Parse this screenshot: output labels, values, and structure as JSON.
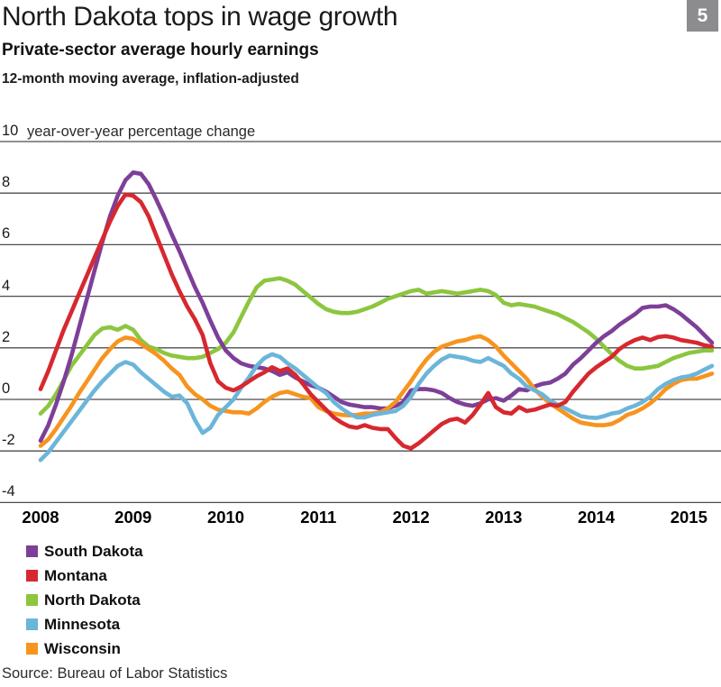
{
  "header": {
    "title": "North Dakota tops in wage growth",
    "badge": "5",
    "subtitle": "Private-sector average hourly earnings",
    "note": "12-month moving average, inflation-adjusted"
  },
  "source": "Source: Bureau of Labor Statistics",
  "chart_data": {
    "type": "line",
    "title": "North Dakota tops in wage growth",
    "subtitle": "Private-sector average hourly earnings",
    "note": "12-month moving average, inflation-adjusted",
    "grid": true,
    "legend_position": "bottom-left",
    "y_axis": {
      "annotation": "year-over-year percentage change",
      "ylim": [
        -4,
        10
      ],
      "ticks": [
        10,
        8,
        6,
        4,
        2,
        0,
        -2,
        -4
      ]
    },
    "x_axis": {
      "start": "2008-01",
      "end": "2015-04",
      "frequency": "monthly",
      "ticks": [
        "2008",
        "2009",
        "2010",
        "2011",
        "2012",
        "2013",
        "2014",
        "2015"
      ]
    },
    "series": [
      {
        "name": "South Dakota",
        "color": "#7d3f98",
        "values": [
          -1.6,
          -1.0,
          -0.2,
          0.7,
          1.7,
          2.8,
          3.9,
          5.0,
          6.1,
          7.1,
          7.9,
          8.5,
          8.8,
          8.75,
          8.35,
          7.75,
          7.1,
          6.4,
          5.75,
          5.05,
          4.35,
          3.75,
          3.05,
          2.4,
          1.9,
          1.6,
          1.4,
          1.3,
          1.25,
          1.2,
          1.1,
          0.95,
          1.05,
          0.85,
          0.7,
          0.55,
          0.45,
          0.3,
          0.1,
          -0.1,
          -0.2,
          -0.25,
          -0.3,
          -0.3,
          -0.35,
          -0.35,
          -0.25,
          -0.1,
          0.35,
          0.4,
          0.4,
          0.35,
          0.25,
          0.05,
          -0.1,
          -0.2,
          -0.25,
          -0.15,
          0.0,
          0.05,
          -0.05,
          0.15,
          0.4,
          0.35,
          0.5,
          0.6,
          0.65,
          0.8,
          1.0,
          1.35,
          1.6,
          1.9,
          2.2,
          2.45,
          2.65,
          2.9,
          3.1,
          3.3,
          3.55,
          3.6,
          3.6,
          3.65,
          3.5,
          3.3,
          3.05,
          2.8,
          2.5,
          2.2
        ]
      },
      {
        "name": "Montana",
        "color": "#d7282f",
        "values": [
          0.4,
          1.1,
          1.9,
          2.7,
          3.4,
          4.1,
          4.8,
          5.5,
          6.2,
          6.9,
          7.5,
          7.95,
          7.9,
          7.65,
          7.1,
          6.35,
          5.6,
          4.85,
          4.2,
          3.6,
          3.1,
          2.5,
          1.4,
          0.7,
          0.45,
          0.35,
          0.5,
          0.7,
          0.9,
          1.05,
          1.25,
          1.1,
          1.2,
          0.95,
          0.6,
          0.2,
          -0.1,
          -0.4,
          -0.7,
          -0.9,
          -1.05,
          -1.1,
          -1.0,
          -1.1,
          -1.15,
          -1.15,
          -1.5,
          -1.8,
          -1.9,
          -1.7,
          -1.45,
          -1.2,
          -0.95,
          -0.8,
          -0.75,
          -0.9,
          -0.6,
          -0.2,
          0.25,
          -0.3,
          -0.5,
          -0.55,
          -0.3,
          -0.45,
          -0.4,
          -0.3,
          -0.2,
          -0.25,
          -0.1,
          0.3,
          0.65,
          1.0,
          1.25,
          1.45,
          1.65,
          1.95,
          2.15,
          2.3,
          2.4,
          2.3,
          2.42,
          2.45,
          2.4,
          2.3,
          2.25,
          2.2,
          2.1,
          2.05
        ]
      },
      {
        "name": "North Dakota",
        "color": "#8cc63f",
        "values": [
          -0.55,
          -0.25,
          0.2,
          0.75,
          1.3,
          1.7,
          2.1,
          2.5,
          2.75,
          2.8,
          2.7,
          2.85,
          2.7,
          2.3,
          2.05,
          1.95,
          1.8,
          1.7,
          1.65,
          1.6,
          1.6,
          1.65,
          1.8,
          1.95,
          2.2,
          2.6,
          3.2,
          3.8,
          4.35,
          4.6,
          4.65,
          4.7,
          4.6,
          4.45,
          4.2,
          3.95,
          3.7,
          3.5,
          3.4,
          3.35,
          3.35,
          3.4,
          3.5,
          3.6,
          3.75,
          3.9,
          4.0,
          4.1,
          4.2,
          4.25,
          4.1,
          4.15,
          4.2,
          4.15,
          4.1,
          4.15,
          4.2,
          4.25,
          4.2,
          4.05,
          3.75,
          3.65,
          3.7,
          3.65,
          3.6,
          3.5,
          3.4,
          3.3,
          3.15,
          3.0,
          2.8,
          2.6,
          2.35,
          2.05,
          1.75,
          1.5,
          1.3,
          1.2,
          1.2,
          1.25,
          1.3,
          1.45,
          1.6,
          1.7,
          1.8,
          1.85,
          1.9,
          1.9
        ]
      },
      {
        "name": "Minnesota",
        "color": "#6cb5da",
        "values": [
          -2.35,
          -2.05,
          -1.65,
          -1.25,
          -0.85,
          -0.45,
          -0.05,
          0.35,
          0.7,
          1.0,
          1.3,
          1.45,
          1.35,
          1.05,
          0.8,
          0.55,
          0.3,
          0.1,
          0.15,
          -0.15,
          -0.8,
          -1.3,
          -1.1,
          -0.6,
          -0.3,
          0.0,
          0.45,
          0.85,
          1.3,
          1.6,
          1.75,
          1.65,
          1.4,
          1.2,
          0.95,
          0.7,
          0.45,
          0.25,
          -0.1,
          -0.35,
          -0.55,
          -0.7,
          -0.7,
          -0.6,
          -0.55,
          -0.5,
          -0.45,
          -0.25,
          0.1,
          0.6,
          1.0,
          1.3,
          1.55,
          1.7,
          1.65,
          1.6,
          1.5,
          1.45,
          1.6,
          1.45,
          1.3,
          1.0,
          0.8,
          0.5,
          0.35,
          0.2,
          -0.05,
          -0.2,
          -0.35,
          -0.5,
          -0.65,
          -0.7,
          -0.72,
          -0.65,
          -0.55,
          -0.5,
          -0.35,
          -0.25,
          -0.1,
          0.1,
          0.4,
          0.6,
          0.75,
          0.85,
          0.9,
          1.0,
          1.15,
          1.3
        ]
      },
      {
        "name": "Wisconsin",
        "color": "#f7941e",
        "values": [
          -1.8,
          -1.55,
          -1.15,
          -0.7,
          -0.25,
          0.25,
          0.7,
          1.15,
          1.6,
          1.95,
          2.25,
          2.4,
          2.35,
          2.15,
          1.95,
          1.75,
          1.5,
          1.2,
          0.95,
          0.5,
          0.2,
          0.0,
          -0.25,
          -0.4,
          -0.45,
          -0.5,
          -0.5,
          -0.55,
          -0.35,
          -0.1,
          0.1,
          0.25,
          0.3,
          0.2,
          0.1,
          0.05,
          -0.3,
          -0.45,
          -0.55,
          -0.6,
          -0.62,
          -0.6,
          -0.55,
          -0.55,
          -0.5,
          -0.35,
          -0.1,
          0.3,
          0.7,
          1.15,
          1.55,
          1.85,
          2.05,
          2.15,
          2.25,
          2.3,
          2.4,
          2.45,
          2.3,
          2.05,
          1.7,
          1.4,
          1.1,
          0.8,
          0.4,
          0.1,
          -0.15,
          -0.35,
          -0.55,
          -0.75,
          -0.9,
          -0.95,
          -1.0,
          -1.0,
          -0.95,
          -0.8,
          -0.6,
          -0.5,
          -0.35,
          -0.15,
          0.1,
          0.4,
          0.6,
          0.75,
          0.8,
          0.8,
          0.9,
          1.0
        ]
      }
    ]
  }
}
